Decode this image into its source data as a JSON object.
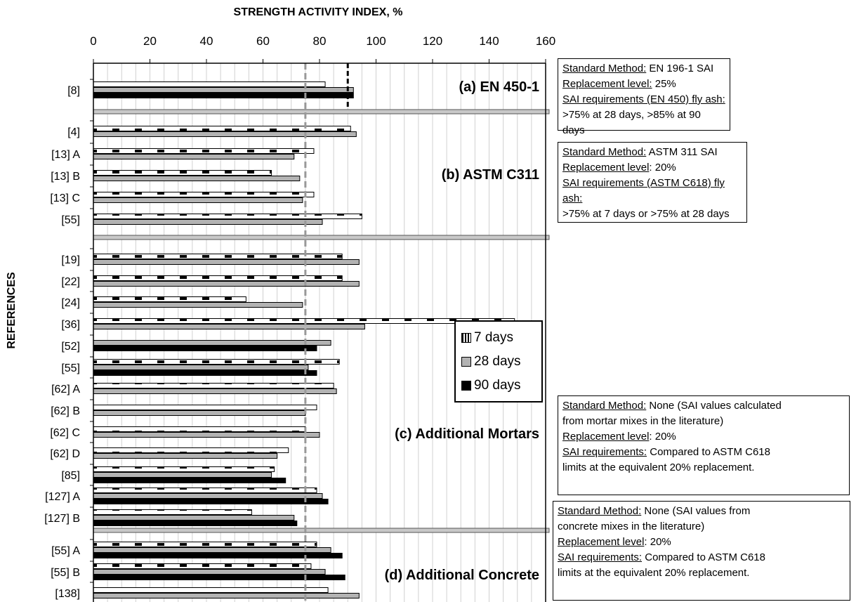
{
  "colors": {
    "d7": "#ffffff",
    "d28": "#b3b3b3",
    "d90": "#000000",
    "limit75": "#999999",
    "limit90": "#000000",
    "separator": "#c8c8c8"
  },
  "chart_data": {
    "type": "bar",
    "orientation": "horizontal",
    "title": "STRENGTH ACTIVITY INDEX, %",
    "xlabel": "STRENGTH ACTIVITY INDEX, %",
    "ylabel": "REFERENCES",
    "xlim": [
      0,
      160
    ],
    "xticks": [
      "0",
      "20",
      "40",
      "60",
      "80",
      "100",
      "120",
      "140",
      "160"
    ],
    "grid": true,
    "legend_placement": "center-right",
    "reference_lines": [
      {
        "x": 75,
        "style": "dashed",
        "color": "grey"
      },
      {
        "x": 90,
        "style": "dashed",
        "color": "black",
        "group": "(a) EN 450-1"
      }
    ],
    "series_names": [
      "7 days",
      "28 days",
      "90 days"
    ],
    "groups": [
      {
        "label": "(a) EN 450-1",
        "rows": [
          {
            "ref": "[8]",
            "d7": 82,
            "d28": 92,
            "d90": 92
          }
        ]
      },
      {
        "label": "(b) ASTM C311",
        "rows": [
          {
            "ref": "[4]",
            "d7": 91,
            "d28": 93,
            "d90": null
          },
          {
            "ref": "[13] A",
            "d7": 78,
            "d28": 71,
            "d90": null
          },
          {
            "ref": "[13] B",
            "d7": 63,
            "d28": 73,
            "d90": null
          },
          {
            "ref": "[13] C",
            "d7": 78,
            "d28": 74,
            "d90": null
          },
          {
            "ref": "[55]",
            "d7": 95,
            "d28": 81,
            "d90": null
          }
        ]
      },
      {
        "label": "(c) Additional Mortars",
        "rows": [
          {
            "ref": "[19]",
            "d7": 88,
            "d28": 94,
            "d90": null
          },
          {
            "ref": "[22]",
            "d7": 88,
            "d28": 94,
            "d90": null
          },
          {
            "ref": "[24]",
            "d7": 54,
            "d28": 74,
            "d90": null
          },
          {
            "ref": "[36]",
            "d7": 149,
            "d28": 96,
            "d90": null
          },
          {
            "ref": "[52]",
            "d7": null,
            "d28": 84,
            "d90": 79
          },
          {
            "ref": "[55]",
            "d7": 87,
            "d28": 76,
            "d90": 79
          },
          {
            "ref": "[62] A",
            "d7": 85,
            "d28": 86,
            "d90": null
          },
          {
            "ref": "[62] B",
            "d7": 79,
            "d28": 75,
            "d90": null
          },
          {
            "ref": "[62] C",
            "d7": 75,
            "d28": 80,
            "d90": null
          },
          {
            "ref": "[62] D",
            "d7": 69,
            "d28": 65,
            "d90": null
          },
          {
            "ref": "[85]",
            "d7": 64,
            "d28": 63,
            "d90": 68
          },
          {
            "ref": "[127] A",
            "d7": 79,
            "d28": 81,
            "d90": 83
          },
          {
            "ref": "[127] B",
            "d7": 56,
            "d28": 71,
            "d90": 72
          }
        ]
      },
      {
        "label": "(d) Additional Concrete",
        "rows": [
          {
            "ref": "[55] A",
            "d7": 79,
            "d28": 84,
            "d90": 88
          },
          {
            "ref": "[55] B",
            "d7": 77,
            "d28": 82,
            "d90": 89
          },
          {
            "ref": "[138]",
            "d7": 83,
            "d28": 94,
            "d90": null
          }
        ]
      }
    ]
  },
  "legend": {
    "items": [
      "7 days",
      "28 days",
      "90 days"
    ]
  },
  "notes": [
    {
      "lines": [
        {
          "label": "Standard Method:",
          "text": " EN 196-1 SAI"
        },
        {
          "label": "Replacement level:",
          "text": " 25%"
        },
        {
          "label": "SAI requirements (EN 450) fly ash:",
          "text": ""
        },
        {
          "label": "",
          "text": ">75% at 28 days, >85% at 90 days"
        }
      ]
    },
    {
      "lines": [
        {
          "label": "Standard Method:",
          "text": " ASTM 311 SAI"
        },
        {
          "label": "Replacement level",
          "text": ": 20%"
        },
        {
          "label": "SAI requirements (ASTM C618) fly ash:",
          "text": ""
        },
        {
          "label": "",
          "text": ">75% at 7 days or >75% at 28 days"
        }
      ]
    },
    {
      "lines": [
        {
          "label": "Standard Method:",
          "text": " None (SAI values calculated"
        },
        {
          "label": "",
          "text": "from mortar mixes in the literature)"
        },
        {
          "label": "Replacement level",
          "text": ": 20%"
        },
        {
          "label": "SAI requirements:",
          "text": " Compared to ASTM C618"
        },
        {
          "label": "",
          "text": "limits at the equivalent 20% replacement."
        }
      ]
    },
    {
      "lines": [
        {
          "label": "Standard Method:",
          "text": " None (SAI values from"
        },
        {
          "label": "",
          "text": "concrete mixes in the literature)"
        },
        {
          "label": "Replacement level",
          "text": ": 20%"
        },
        {
          "label": "SAI requirements:",
          "text": " Compared to ASTM C618"
        },
        {
          "label": "",
          "text": "limits at the equivalent 20% replacement."
        }
      ]
    }
  ]
}
